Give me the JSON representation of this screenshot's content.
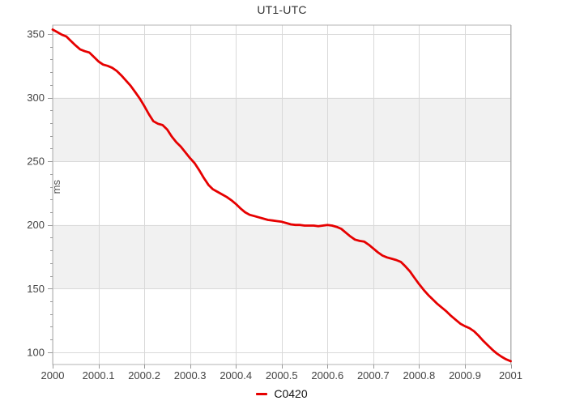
{
  "colors": {
    "line": "#e60000",
    "band_fill": "#f1f1f1",
    "grid": "#d9d9d9",
    "plot_border": "#b3b3b3",
    "tick": "#999999",
    "tick_label": "#444444",
    "title_text": "#333333",
    "background": "#ffffff"
  },
  "chart_data": {
    "type": "line",
    "title": "UT1-UTC",
    "xlabel": "",
    "ylabel": "ms",
    "grid": true,
    "legend_position": "bottom-center",
    "x_range": [
      2000,
      2001
    ],
    "y_render_range": [
      90.4,
      357
    ],
    "x_tick_values": [
      2000,
      2000.1,
      2000.2,
      2000.3,
      2000.4,
      2000.5,
      2000.6,
      2000.7,
      2000.8,
      2000.9,
      2001
    ],
    "x_tick_labels": [
      "2000",
      "2000.1",
      "2000.2",
      "2000.3",
      "2000.4",
      "2000.5",
      "2000.6",
      "2000.7",
      "2000.8",
      "2000.9",
      "2001"
    ],
    "y_tick_values": [
      100,
      150,
      200,
      250,
      300,
      350
    ],
    "y_tick_labels": [
      "100",
      "150",
      "200",
      "250",
      "300",
      "350"
    ],
    "y_minor_tick_step": 10,
    "shaded_bands": [
      [
        250,
        300
      ],
      [
        150,
        200
      ]
    ],
    "legend": [
      {
        "label": "C0420",
        "color": "#e60000"
      }
    ],
    "series": [
      {
        "name": "C0420",
        "color": "#e60000",
        "x_start": 2000,
        "x_step": 0.01,
        "values": [
          353.5,
          351.5,
          349.5,
          348,
          344.5,
          341,
          338,
          336.5,
          335.5,
          332,
          328.5,
          326,
          325,
          323.5,
          321,
          317.5,
          313.5,
          309.5,
          304.5,
          299.5,
          293.5,
          287,
          281.5,
          279.5,
          278.5,
          275,
          269.5,
          265,
          261.5,
          257,
          252.5,
          248.5,
          243,
          237,
          231.5,
          228,
          226,
          224,
          222,
          219.5,
          216.5,
          213,
          210,
          208,
          207,
          206,
          205,
          204,
          203.5,
          203,
          202.5,
          201.5,
          200.5,
          200,
          200,
          199.5,
          199.5,
          199.5,
          199,
          199.5,
          200,
          199.5,
          198.5,
          197,
          194,
          191,
          188.5,
          187.5,
          187,
          184.5,
          181.5,
          178.5,
          176,
          174.5,
          173.5,
          172.5,
          171,
          167.5,
          163.5,
          158.5,
          153.5,
          149,
          145,
          141.5,
          138,
          135,
          132,
          128.5,
          125.5,
          122.5,
          120.5,
          119,
          116.5,
          113,
          109,
          105.5,
          102,
          99,
          96.5,
          94.5,
          93
        ]
      }
    ]
  }
}
